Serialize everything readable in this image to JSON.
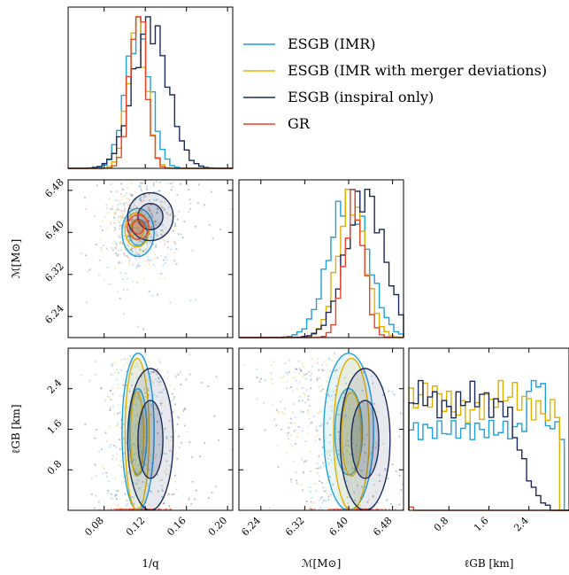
{
  "chart_data": {
    "type": "scatter",
    "variables": [
      {
        "key": "q",
        "label": "1/q",
        "range": [
          0.045,
          0.205
        ],
        "ticks": [
          0.08,
          0.12,
          0.16,
          0.2
        ],
        "tick_labels": [
          "0.08",
          "0.12",
          "0.16",
          "0.20"
        ]
      },
      {
        "key": "mc",
        "label": "ℳ[M⊙]",
        "range": [
          6.2,
          6.5
        ],
        "ticks": [
          6.24,
          6.32,
          6.4,
          6.48
        ],
        "tick_labels": [
          "6.24",
          "6.32",
          "6.40",
          "6.48"
        ]
      },
      {
        "key": "lgb",
        "label": "ℓGB [km]",
        "range": [
          0.0,
          3.2
        ],
        "ticks": [
          0.8,
          1.6,
          2.4
        ],
        "tick_labels": [
          "0.8",
          "1.6",
          "2.4"
        ]
      }
    ],
    "series": [
      {
        "name": "ESGB (IMR)",
        "color": "#1f9fdc",
        "q": {
          "mean": 0.113,
          "sd": 0.012
        },
        "mc": {
          "mean": 6.4,
          "sd": 0.035
        },
        "lgb": {
          "dist": "flat_high",
          "min": 0.0,
          "max": 3.1,
          "peak": 2.55
        }
      },
      {
        "name": "ESGB (IMR with merger deviations)",
        "color": "#e0b000",
        "q": {
          "mean": 0.112,
          "sd": 0.009
        },
        "mc": {
          "mean": 6.405,
          "sd": 0.025
        },
        "lgb": {
          "dist": "flat",
          "min": 0.0,
          "max": 3.0
        }
      },
      {
        "name": "ESGB (inspiral only)",
        "color": "#1b2a5a",
        "q": {
          "mean": 0.125,
          "sd": 0.017
        },
        "mc": {
          "mean": 6.43,
          "sd": 0.035
        },
        "lgb": {
          "dist": "flat_low",
          "min": 0.0,
          "max": 2.8
        }
      },
      {
        "name": "GR",
        "color": "#e8452a",
        "q": {
          "mean": 0.113,
          "sd": 0.008
        },
        "mc": {
          "mean": 6.41,
          "sd": 0.018
        },
        "lgb": {
          "dist": "zero"
        }
      }
    ],
    "legend_position": "top-right",
    "grid": false
  }
}
